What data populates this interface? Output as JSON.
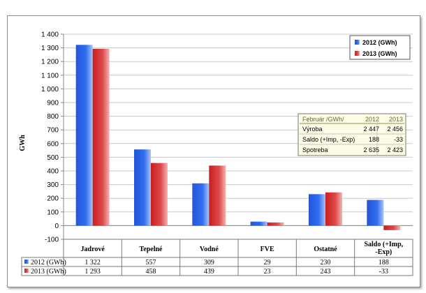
{
  "chart_data": {
    "type": "bar",
    "ylabel": "GWh",
    "ylim": [
      -100,
      1400
    ],
    "ytick_labels": [
      "1 400",
      "1 300",
      "1 200",
      "1 100",
      "1 000",
      "900",
      "800",
      "700",
      "600",
      "500",
      "400",
      "300",
      "200",
      "100",
      "0",
      "-100"
    ],
    "categories": [
      "Jadrové",
      "Tepelné",
      "Vodné",
      "FVE",
      "Ostatné",
      "Saldo (+Imp, -Exp)"
    ],
    "series": [
      {
        "name": "2012 (GWh)",
        "values": [
          1322,
          557,
          309,
          29,
          230,
          188
        ],
        "display": [
          "1 322",
          "557",
          "309",
          "29",
          "230",
          "188"
        ],
        "color": "#1f4fd6"
      },
      {
        "name": "2013 (GWh)",
        "values": [
          1293,
          458,
          439,
          23,
          243,
          -33
        ],
        "display": [
          "1 293",
          "458",
          "439",
          "23",
          "243",
          "-33"
        ],
        "color": "#d42a2a"
      }
    ],
    "legend_position": "top-right",
    "grid": true,
    "inset_table": {
      "header": [
        "Február /GWh/",
        "2012",
        "2013"
      ],
      "rows": [
        [
          "Výroba",
          "2 447",
          "2 456"
        ],
        [
          "Saldo (+Imp, -Exp)",
          "188",
          "-33"
        ],
        [
          "Spotreba",
          "2 635",
          "2 423"
        ]
      ]
    }
  }
}
